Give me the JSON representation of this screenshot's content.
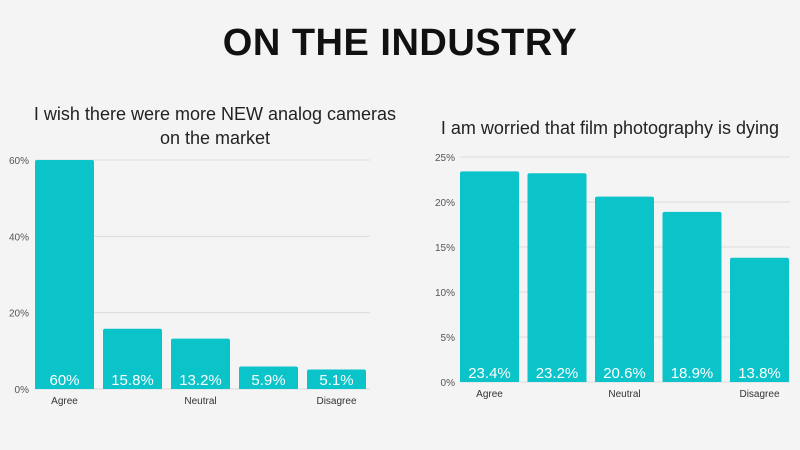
{
  "page": {
    "title": "ON THE INDUSTRY",
    "bar_color": "#0bc4c9",
    "label_color": "#ffffff"
  },
  "chart_data": [
    {
      "type": "bar",
      "title": "I wish there were more NEW analog cameras on the market",
      "categories": [
        "Agree",
        "",
        "Neutral",
        "",
        "Disagree"
      ],
      "values": [
        60,
        15.8,
        13.2,
        5.9,
        5.1
      ],
      "data_labels": [
        "60%",
        "15.8%",
        "13.2%",
        "5.9%",
        "5.1%"
      ],
      "yticks": [
        "0%",
        "20%",
        "40%",
        "60%"
      ],
      "ylim": [
        0,
        60
      ],
      "grid": true,
      "xlabel": "",
      "ylabel": ""
    },
    {
      "type": "bar",
      "title": "I am worried that film photography is dying",
      "categories": [
        "Agree",
        "",
        "Neutral",
        "",
        "Disagree"
      ],
      "values": [
        23.4,
        23.2,
        20.6,
        18.9,
        13.8
      ],
      "data_labels": [
        "23.4%",
        "23.2%",
        "20.6%",
        "18.9%",
        "13.8%"
      ],
      "yticks": [
        "0%",
        "5%",
        "10%",
        "15%",
        "20%",
        "25%"
      ],
      "ylim": [
        0,
        25
      ],
      "grid": true,
      "xlabel": "",
      "ylabel": ""
    }
  ]
}
